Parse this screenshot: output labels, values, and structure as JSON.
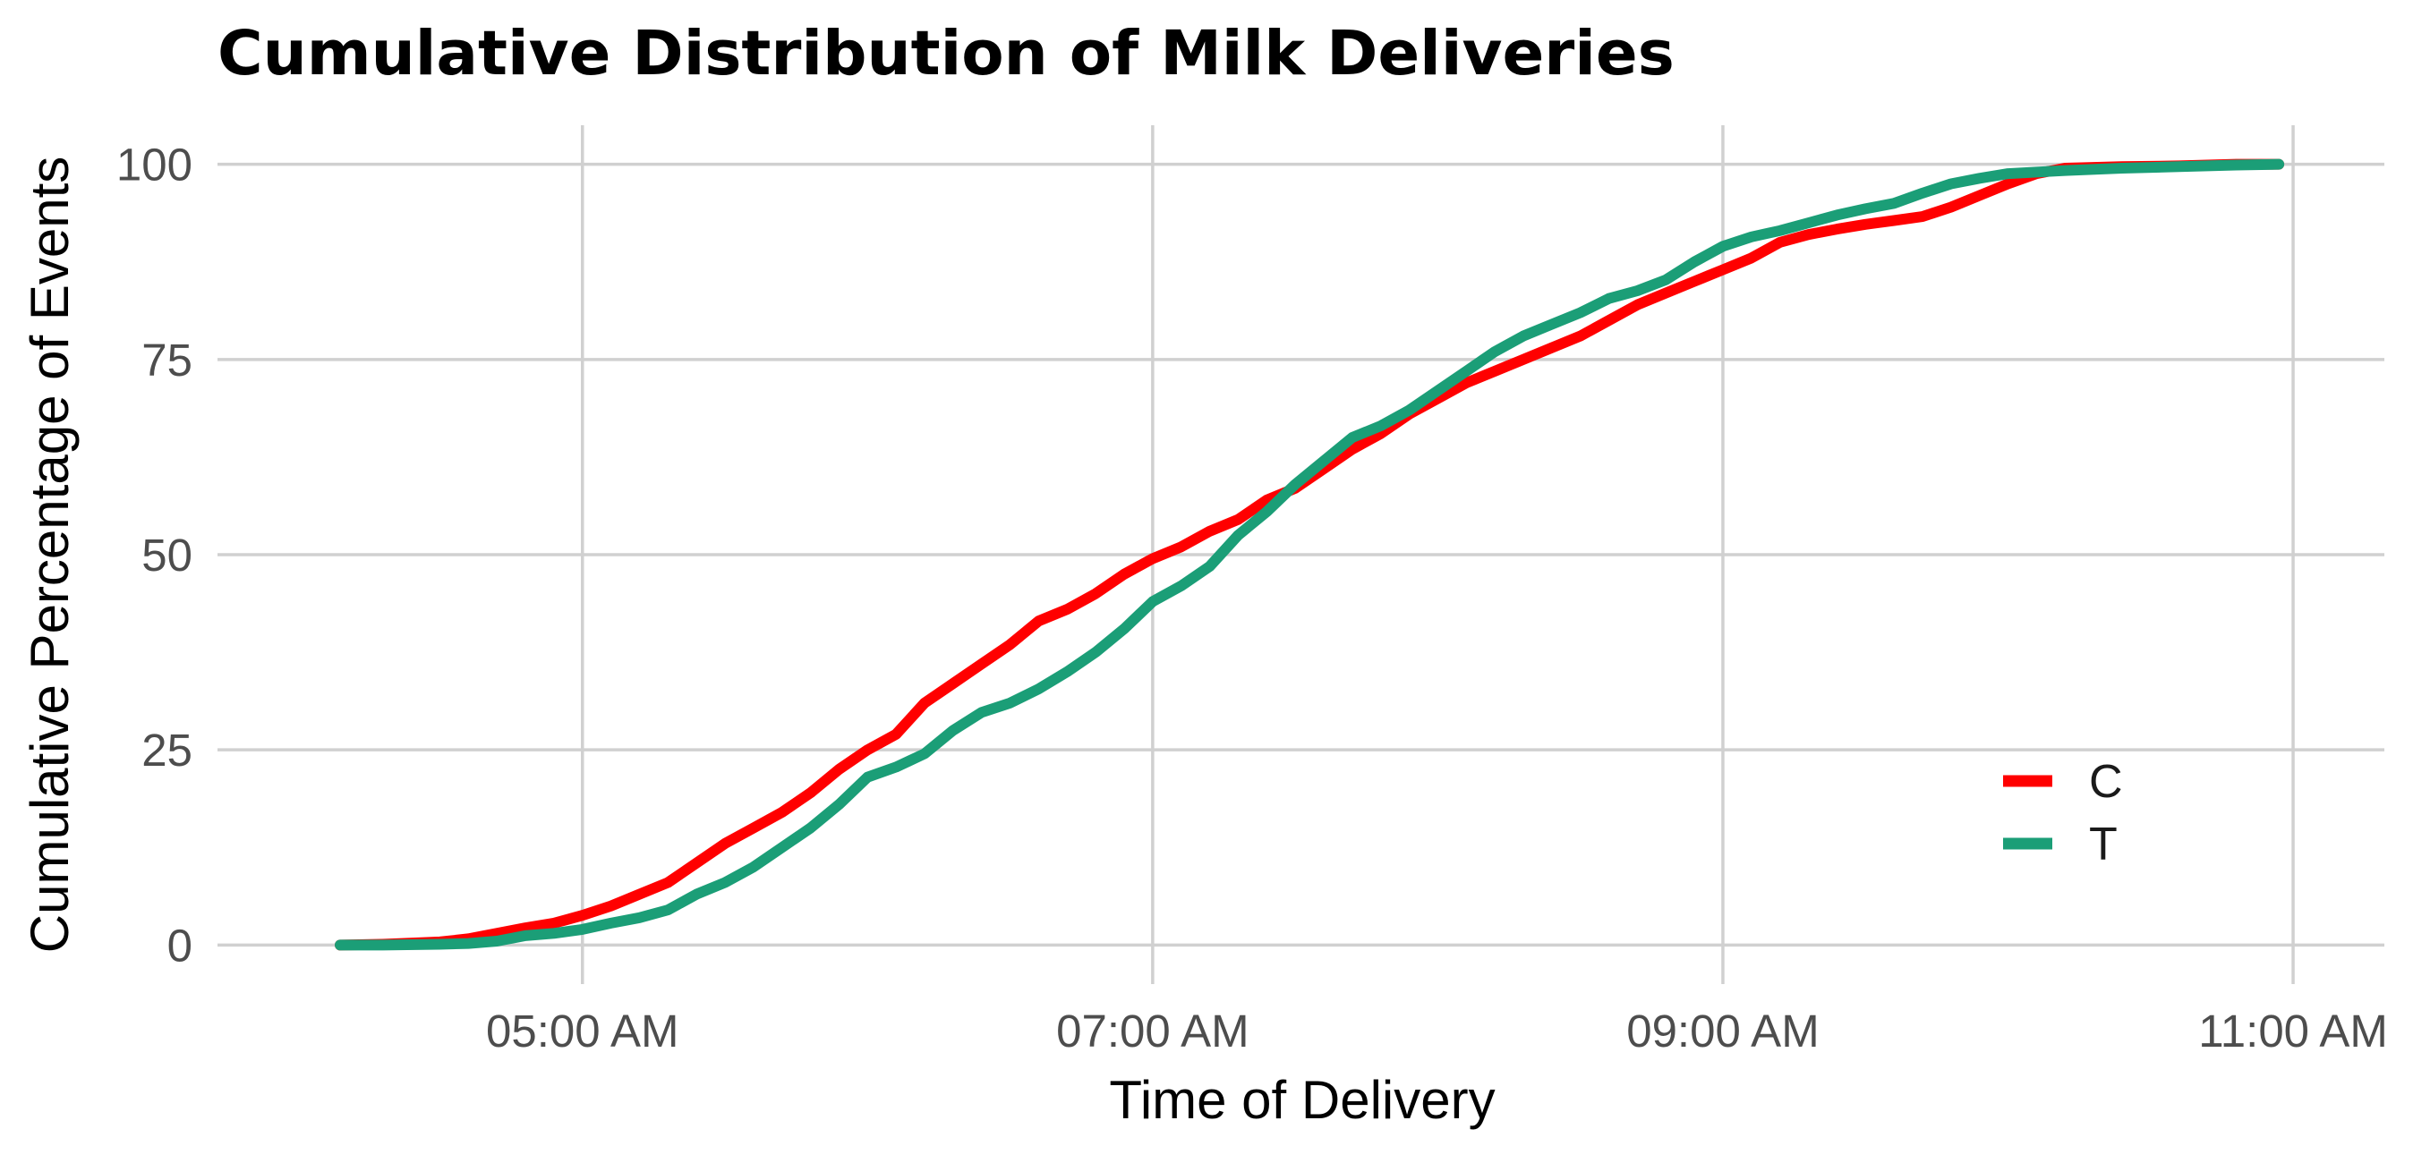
{
  "chart_data": {
    "type": "line",
    "title": "Cumulative Distribution of Milk Deliveries",
    "xlabel": "Time of Delivery",
    "ylabel": "Cumulative Percentage of Events",
    "x_tick_labels": [
      "05:00 AM",
      "07:00 AM",
      "09:00 AM",
      "11:00 AM"
    ],
    "x_ticks": [
      5,
      7,
      9,
      11
    ],
    "x_minor_ticks": [
      4,
      6,
      8,
      10
    ],
    "y_ticks": [
      0,
      25,
      50,
      75,
      100
    ],
    "y_tick_labels": [
      "0",
      "25",
      "50",
      "75",
      "100"
    ],
    "xlim": [
      3.72,
      11.32
    ],
    "ylim": [
      -5,
      105
    ],
    "grid": true,
    "legend": {
      "position": "bottom-right"
    },
    "series": [
      {
        "name": "C",
        "color": "#ff0000",
        "x": [
          4.15,
          4.3,
          4.5,
          4.6,
          4.7,
          4.8,
          4.9,
          5.0,
          5.1,
          5.2,
          5.3,
          5.4,
          5.5,
          5.6,
          5.7,
          5.8,
          5.9,
          6.0,
          6.1,
          6.2,
          6.3,
          6.4,
          6.5,
          6.6,
          6.7,
          6.8,
          6.9,
          7.0,
          7.1,
          7.2,
          7.3,
          7.4,
          7.5,
          7.6,
          7.7,
          7.8,
          7.9,
          8.0,
          8.1,
          8.2,
          8.3,
          8.4,
          8.5,
          8.6,
          8.7,
          8.8,
          8.9,
          9.0,
          9.1,
          9.2,
          9.3,
          9.4,
          9.5,
          9.6,
          9.7,
          9.8,
          9.9,
          10.0,
          10.1,
          10.2,
          10.4,
          10.6,
          10.8,
          10.95
        ],
        "y": [
          0,
          0.1,
          0.4,
          0.8,
          1.5,
          2.2,
          2.8,
          3.8,
          5.0,
          6.5,
          8.0,
          10.5,
          13.0,
          15.0,
          17.0,
          19.5,
          22.5,
          25.0,
          27.0,
          31.0,
          33.5,
          36.0,
          38.5,
          41.5,
          43.0,
          45.0,
          47.5,
          49.5,
          51.0,
          53.0,
          54.5,
          57.0,
          58.5,
          61.0,
          63.5,
          65.5,
          68.0,
          70.0,
          72.0,
          73.5,
          75.0,
          76.5,
          78.0,
          80.0,
          82.0,
          83.5,
          85.0,
          86.5,
          88.0,
          90.0,
          91.0,
          91.7,
          92.3,
          92.8,
          93.3,
          94.5,
          96.0,
          97.5,
          98.8,
          99.5,
          99.7,
          99.8,
          100,
          100
        ]
      },
      {
        "name": "T",
        "color": "#1b9e77",
        "x": [
          4.15,
          4.3,
          4.5,
          4.6,
          4.7,
          4.8,
          4.9,
          5.0,
          5.1,
          5.2,
          5.3,
          5.4,
          5.5,
          5.6,
          5.7,
          5.8,
          5.9,
          6.0,
          6.1,
          6.2,
          6.3,
          6.4,
          6.5,
          6.6,
          6.7,
          6.8,
          6.9,
          7.0,
          7.1,
          7.2,
          7.3,
          7.4,
          7.5,
          7.6,
          7.7,
          7.8,
          7.9,
          8.0,
          8.1,
          8.2,
          8.3,
          8.4,
          8.5,
          8.6,
          8.7,
          8.8,
          8.9,
          9.0,
          9.1,
          9.2,
          9.3,
          9.4,
          9.5,
          9.6,
          9.7,
          9.8,
          9.9,
          10.0,
          10.1,
          10.2,
          10.4,
          10.6,
          10.8,
          10.95
        ],
        "y": [
          0,
          0,
          0.1,
          0.2,
          0.5,
          1.2,
          1.5,
          2.0,
          2.8,
          3.5,
          4.5,
          6.5,
          8.0,
          10.0,
          12.5,
          15.0,
          18.0,
          21.5,
          22.8,
          24.5,
          27.5,
          29.8,
          31.0,
          32.8,
          35.0,
          37.5,
          40.5,
          44.0,
          46.0,
          48.5,
          52.5,
          55.5,
          59.0,
          62.0,
          65.0,
          66.5,
          68.5,
          71.0,
          73.5,
          76.0,
          78.0,
          79.5,
          81.0,
          82.8,
          83.8,
          85.2,
          87.5,
          89.5,
          90.7,
          91.5,
          92.5,
          93.5,
          94.3,
          95.0,
          96.3,
          97.5,
          98.2,
          98.8,
          99.0,
          99.2,
          99.5,
          99.7,
          99.9,
          100
        ]
      }
    ]
  }
}
